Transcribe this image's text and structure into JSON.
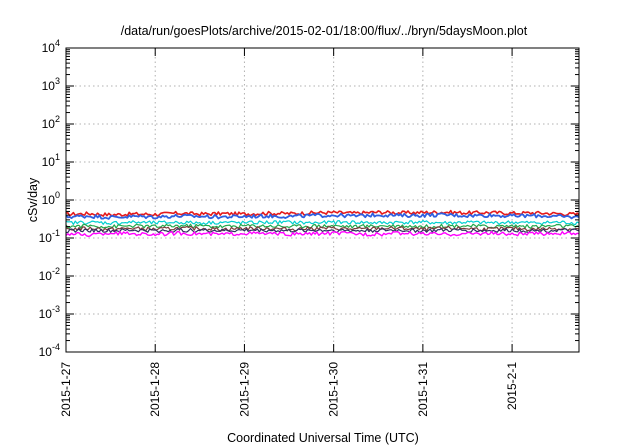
{
  "chart_data": {
    "type": "line",
    "title": "/data/run/goesPlots/archive/2015-02-01/18:00/flux/../bryn/5daysMoon.plot",
    "xlabel": "Coordinated Universal Time (UTC)",
    "ylabel": "cSv/day",
    "yscale": "log",
    "ylim": [
      0.0001,
      10000
    ],
    "xlim": [
      "2015-01-27T00:00",
      "2015-02-01T18:00"
    ],
    "grid": true,
    "legend": "none",
    "y_ticks": [
      {
        "value": 0.0001,
        "mantissa": "10",
        "exponent": "-4"
      },
      {
        "value": 0.001,
        "mantissa": "10",
        "exponent": "-3"
      },
      {
        "value": 0.01,
        "mantissa": "10",
        "exponent": "-2"
      },
      {
        "value": 0.1,
        "mantissa": "10",
        "exponent": "-1"
      },
      {
        "value": 1,
        "mantissa": "10",
        "exponent": "0"
      },
      {
        "value": 10,
        "mantissa": "10",
        "exponent": "1"
      },
      {
        "value": 100,
        "mantissa": "10",
        "exponent": "2"
      },
      {
        "value": 1000,
        "mantissa": "10",
        "exponent": "3"
      },
      {
        "value": 10000,
        "mantissa": "10",
        "exponent": "4"
      }
    ],
    "x_ticks": [
      {
        "value": "2015-01-27T00:00",
        "label": "2015-1-27"
      },
      {
        "value": "2015-01-28T00:00",
        "label": "2015-1-28"
      },
      {
        "value": "2015-01-29T00:00",
        "label": "2015-1-29"
      },
      {
        "value": "2015-01-30T00:00",
        "label": "2015-1-30"
      },
      {
        "value": "2015-01-31T00:00",
        "label": "2015-1-31"
      },
      {
        "value": "2015-02-01T00:00",
        "label": "2015-2-1"
      }
    ],
    "x": [
      "2015-01-27T00:00",
      "2015-01-27T06:00",
      "2015-01-27T12:00",
      "2015-01-27T18:00",
      "2015-01-28T00:00",
      "2015-01-28T06:00",
      "2015-01-28T12:00",
      "2015-01-28T18:00",
      "2015-01-29T00:00",
      "2015-01-29T06:00",
      "2015-01-29T12:00",
      "2015-01-29T18:00",
      "2015-01-30T00:00",
      "2015-01-30T06:00",
      "2015-01-30T12:00",
      "2015-01-30T18:00",
      "2015-01-31T00:00",
      "2015-01-31T06:00",
      "2015-01-31T12:00",
      "2015-01-31T18:00",
      "2015-02-01T00:00",
      "2015-02-01T06:00",
      "2015-02-01T12:00",
      "2015-02-01T18:00"
    ],
    "series": [
      {
        "color": "#e41a1c",
        "line_width": 1.6,
        "values": [
          0.42,
          0.44,
          0.41,
          0.43,
          0.42,
          0.45,
          0.43,
          0.44,
          0.43,
          0.45,
          0.44,
          0.46,
          0.47,
          0.45,
          0.48,
          0.46,
          0.47,
          0.48,
          0.46,
          0.47,
          0.45,
          0.46,
          0.44,
          0.42
        ]
      },
      {
        "color": "#2f5fe0",
        "line_width": 1.8,
        "values": [
          0.36,
          0.38,
          0.35,
          0.37,
          0.36,
          0.38,
          0.37,
          0.36,
          0.37,
          0.38,
          0.37,
          0.39,
          0.4,
          0.38,
          0.41,
          0.39,
          0.4,
          0.41,
          0.39,
          0.4,
          0.38,
          0.39,
          0.37,
          0.35
        ]
      },
      {
        "color": "#00d0d0",
        "line_width": 1.2,
        "values": [
          0.25,
          0.26,
          0.25,
          0.26,
          0.25,
          0.26,
          0.25,
          0.26,
          0.25,
          0.26,
          0.26,
          0.25,
          0.26,
          0.26,
          0.25,
          0.26,
          0.26,
          0.25,
          0.26,
          0.25,
          0.26,
          0.25,
          0.26,
          0.25
        ]
      },
      {
        "color": "#22a84a",
        "line_width": 1.2,
        "values": [
          0.2,
          0.21,
          0.2,
          0.21,
          0.2,
          0.21,
          0.21,
          0.2,
          0.21,
          0.21,
          0.2,
          0.21,
          0.21,
          0.2,
          0.21,
          0.21,
          0.2,
          0.21,
          0.21,
          0.2,
          0.21,
          0.2,
          0.21,
          0.2
        ]
      },
      {
        "color": "#7a3a3a",
        "line_width": 1.2,
        "values": [
          0.17,
          0.18,
          0.17,
          0.18,
          0.17,
          0.18,
          0.18,
          0.17,
          0.18,
          0.18,
          0.17,
          0.18,
          0.18,
          0.17,
          0.18,
          0.18,
          0.17,
          0.18,
          0.18,
          0.17,
          0.18,
          0.17,
          0.18,
          0.17
        ]
      },
      {
        "color": "#303060",
        "line_width": 1.2,
        "values": [
          0.155,
          0.16,
          0.155,
          0.16,
          0.155,
          0.16,
          0.16,
          0.155,
          0.16,
          0.16,
          0.155,
          0.16,
          0.16,
          0.155,
          0.16,
          0.16,
          0.155,
          0.16,
          0.16,
          0.155,
          0.16,
          0.155,
          0.16,
          0.155
        ]
      },
      {
        "color": "#ff00ff",
        "line_width": 1.4,
        "values": [
          0.13,
          0.12,
          0.135,
          0.13,
          0.125,
          0.135,
          0.13,
          0.125,
          0.135,
          0.13,
          0.125,
          0.13,
          0.135,
          0.13,
          0.125,
          0.135,
          0.13,
          0.125,
          0.13,
          0.135,
          0.125,
          0.13,
          0.135,
          0.13
        ]
      }
    ]
  }
}
